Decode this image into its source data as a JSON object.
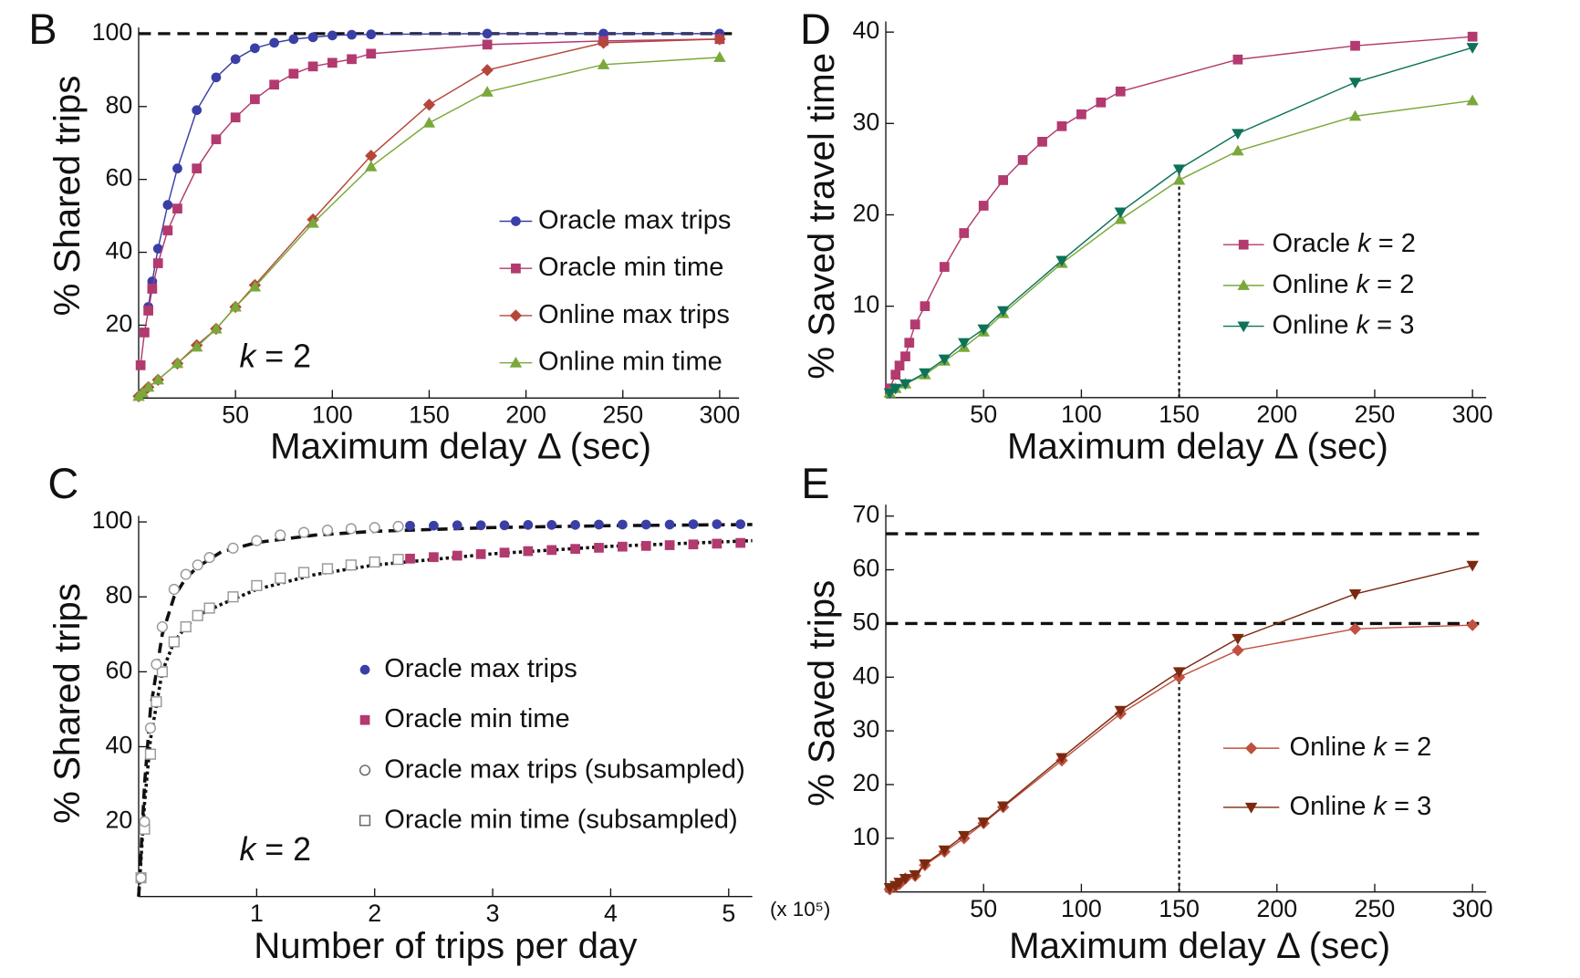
{
  "chart_data": [
    {
      "type": "line",
      "panel": "B",
      "xlabel": "Maximum delay Δ (sec)",
      "ylabel": "% Shared trips",
      "annotation": "k = 2",
      "xlim": [
        0,
        310
      ],
      "ylim": [
        0,
        100
      ],
      "xticks": [
        50,
        100,
        150,
        200,
        250,
        300
      ],
      "yticks": [
        20,
        40,
        60,
        80,
        100
      ],
      "reference_lines": {
        "y": [
          100
        ],
        "x": []
      },
      "series": [
        {
          "name": "Oracle max trips",
          "color": "#3a3fa6",
          "marker": "circle",
          "x": [
            5,
            7,
            10,
            15,
            20,
            30,
            40,
            50,
            60,
            70,
            80,
            90,
            100,
            110,
            120,
            180,
            240,
            300
          ],
          "values": [
            25,
            32,
            41,
            53,
            63,
            79,
            88,
            93,
            96,
            97.5,
            98.5,
            99,
            99.5,
            99.7,
            99.8,
            100,
            100,
            100
          ]
        },
        {
          "name": "Oracle min time",
          "color": "#b23a6e",
          "marker": "square",
          "x": [
            1,
            3,
            5,
            7,
            10,
            15,
            20,
            30,
            40,
            50,
            60,
            70,
            80,
            90,
            100,
            110,
            120,
            180,
            240,
            300
          ],
          "values": [
            9,
            18,
            24,
            30,
            37,
            46,
            52,
            63,
            71,
            77,
            82,
            86,
            89,
            91,
            92,
            93,
            94.5,
            97,
            98,
            98.5
          ]
        },
        {
          "name": "Online max trips",
          "color": "#b5473a",
          "marker": "diamond",
          "x": [
            0,
            2,
            5,
            10,
            20,
            30,
            40,
            50,
            60,
            90,
            120,
            150,
            180,
            240,
            300
          ],
          "values": [
            0.5,
            1.5,
            3,
            5,
            9.5,
            14.5,
            19,
            25,
            31,
            49,
            66.5,
            80.5,
            90,
            97.5,
            98.5
          ]
        },
        {
          "name": "Online min time",
          "color": "#7aa83a",
          "marker": "triangle",
          "x": [
            0,
            2,
            5,
            10,
            20,
            30,
            40,
            50,
            60,
            90,
            120,
            150,
            180,
            240,
            300
          ],
          "values": [
            0.5,
            1.5,
            3,
            5,
            9.5,
            14,
            19,
            25,
            30.5,
            48,
            63.5,
            75.5,
            84,
            91.5,
            93.5
          ]
        }
      ]
    },
    {
      "type": "scatter",
      "panel": "C",
      "xlabel": "Number of trips per day",
      "ylabel": "% Shared trips",
      "annotation": "k = 2",
      "x_unit": "(x 10⁵)",
      "xlim": [
        0,
        5.2
      ],
      "ylim": [
        0,
        100
      ],
      "xticks": [
        1,
        2,
        3,
        4,
        5
      ],
      "yticks": [
        20,
        40,
        60,
        80,
        100
      ],
      "reference_lines": {
        "y": [],
        "x": []
      },
      "fit_lines": [
        {
          "style": "dashed",
          "x": [
            0,
            0.05,
            0.1,
            0.2,
            0.3,
            0.4,
            0.5,
            0.7,
            1,
            1.5,
            2,
            3,
            4,
            5.2
          ],
          "values": [
            0,
            30,
            50,
            70,
            80,
            85,
            88,
            92,
            94.5,
            96.5,
            97.5,
            98.5,
            99,
            99.3
          ]
        },
        {
          "style": "dotted",
          "x": [
            0,
            0.05,
            0.1,
            0.2,
            0.3,
            0.4,
            0.5,
            0.7,
            1,
            1.5,
            2,
            3,
            4,
            5.2
          ],
          "values": [
            0,
            25,
            42,
            60,
            68,
            72,
            75,
            78,
            82,
            86,
            88.5,
            91.5,
            93.5,
            95
          ]
        }
      ],
      "series": [
        {
          "name": "Oracle max trips",
          "color": "#3a3fa6",
          "marker": "circle",
          "x": [
            2.3,
            2.5,
            2.7,
            2.9,
            3.1,
            3.3,
            3.5,
            3.7,
            3.9,
            4.1,
            4.3,
            4.5,
            4.7,
            4.9,
            5.1
          ],
          "values": [
            99,
            99,
            99.1,
            99.1,
            99.1,
            99.2,
            99.2,
            99.2,
            99.3,
            99.3,
            99.3,
            99.3,
            99.4,
            99.4,
            99.4
          ]
        },
        {
          "name": "Oracle min time",
          "color": "#b23a6e",
          "marker": "square",
          "x": [
            2.3,
            2.5,
            2.7,
            2.9,
            3.1,
            3.3,
            3.5,
            3.7,
            3.9,
            4.1,
            4.3,
            4.5,
            4.7,
            4.9,
            5.1
          ],
          "values": [
            90.2,
            90.6,
            91,
            91.4,
            91.8,
            92.2,
            92.5,
            92.8,
            93.1,
            93.4,
            93.6,
            93.8,
            94,
            94.2,
            94.4
          ]
        },
        {
          "name": "Oracle max trips (subsampled)",
          "color": "#999999",
          "marker": "open-circle",
          "x": [
            0.02,
            0.05,
            0.1,
            0.15,
            0.2,
            0.3,
            0.4,
            0.5,
            0.6,
            0.8,
            1,
            1.2,
            1.4,
            1.6,
            1.8,
            2,
            2.2
          ],
          "values": [
            5,
            20,
            45,
            62,
            72,
            82,
            86,
            88.5,
            90.5,
            93,
            95,
            96.5,
            97.2,
            97.8,
            98.2,
            98.5,
            98.8
          ]
        },
        {
          "name": "Oracle min time (subsampled)",
          "color": "#999999",
          "marker": "open-square",
          "x": [
            0.02,
            0.05,
            0.1,
            0.15,
            0.2,
            0.3,
            0.4,
            0.5,
            0.6,
            0.8,
            1,
            1.2,
            1.4,
            1.6,
            1.8,
            2,
            2.2
          ],
          "values": [
            5,
            18,
            38,
            52,
            60,
            68,
            72,
            75,
            77,
            80,
            83,
            85,
            86.5,
            87.5,
            88.5,
            89.3,
            90
          ]
        }
      ]
    },
    {
      "type": "line",
      "panel": "D",
      "xlabel": "Maximum delay Δ (sec)",
      "ylabel": "% Saved travel time",
      "xlim": [
        0,
        307
      ],
      "ylim": [
        0,
        40.5
      ],
      "xticks": [
        50,
        100,
        150,
        200,
        250,
        300
      ],
      "yticks": [
        10,
        20,
        30,
        40
      ],
      "reference_lines": {
        "y": [],
        "x": [
          150
        ]
      },
      "series": [
        {
          "name": "Oracle k = 2",
          "color": "#b23a6e",
          "marker": "square",
          "x": [
            2,
            5,
            7,
            10,
            12,
            15,
            20,
            30,
            40,
            50,
            60,
            70,
            80,
            90,
            100,
            110,
            120,
            180,
            240,
            300
          ],
          "values": [
            1,
            2.5,
            3.5,
            4.5,
            6,
            8,
            10,
            14.3,
            18,
            21,
            23.8,
            26,
            28,
            29.7,
            31,
            32.3,
            33.5,
            37,
            38.5,
            39.5
          ]
        },
        {
          "name": "Online k = 2",
          "color": "#7aa83a",
          "marker": "triangle",
          "x": [
            2,
            5,
            10,
            20,
            30,
            40,
            50,
            60,
            90,
            120,
            150,
            180,
            240,
            300
          ],
          "values": [
            0.5,
            1,
            1.5,
            2.5,
            4,
            5.5,
            7.2,
            9.2,
            14.7,
            19.5,
            23.8,
            27,
            30.8,
            32.5
          ]
        },
        {
          "name": "Online k = 3",
          "color": "#0d7259",
          "marker": "triangle-down",
          "x": [
            2,
            5,
            10,
            20,
            30,
            40,
            50,
            60,
            90,
            120,
            150,
            180,
            240,
            300
          ],
          "values": [
            0.5,
            1,
            1.5,
            2.7,
            4.2,
            6,
            7.5,
            9.5,
            15,
            20.3,
            25,
            28.9,
            34.5,
            38.3
          ]
        }
      ]
    },
    {
      "type": "line",
      "panel": "E",
      "xlabel": "Maximum delay Δ (sec)",
      "ylabel": "% Saved trips",
      "xlim": [
        0,
        307
      ],
      "ylim": [
        0,
        71
      ],
      "xticks": [
        50,
        100,
        150,
        200,
        250,
        300
      ],
      "yticks": [
        10,
        20,
        30,
        40,
        50,
        60,
        70
      ],
      "reference_lines": {
        "y": [
          66.7,
          50
        ],
        "x": [
          150
        ]
      },
      "series": [
        {
          "name": "Online k = 2",
          "color": "#c05040",
          "marker": "diamond",
          "x": [
            2,
            5,
            7,
            10,
            15,
            20,
            30,
            40,
            50,
            60,
            90,
            120,
            150,
            180,
            240,
            300
          ],
          "values": [
            0.5,
            1,
            1.5,
            2.5,
            3,
            5,
            7.5,
            10,
            12.8,
            15.8,
            24.5,
            33.2,
            40,
            45,
            49,
            49.7
          ]
        },
        {
          "name": "Online k = 3",
          "color": "#7b2a10",
          "marker": "triangle-down",
          "x": [
            2,
            5,
            7,
            10,
            15,
            20,
            30,
            40,
            50,
            60,
            90,
            120,
            150,
            180,
            240,
            300
          ],
          "values": [
            0.8,
            1.2,
            1.8,
            2.5,
            3.2,
            5.2,
            7.8,
            10.5,
            13,
            16,
            25,
            33.8,
            41,
            47.2,
            55.5,
            60.8
          ]
        }
      ]
    }
  ]
}
